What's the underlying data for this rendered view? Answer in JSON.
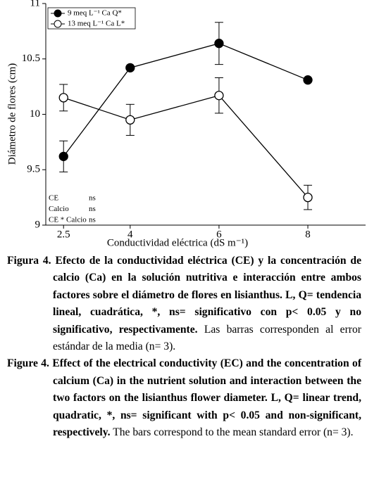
{
  "chart_data": {
    "type": "line",
    "y_label": "Diámetro de flores (cm)",
    "x_label": "Conductividad eléctrica (dS m⁻¹)",
    "x": [
      2.5,
      4,
      6,
      8
    ],
    "xlim": [
      2.1,
      9.3
    ],
    "xticks": [
      2.5,
      4,
      6,
      8
    ],
    "ylim": [
      9,
      11
    ],
    "yticks": [
      9,
      9.5,
      10,
      10.5,
      11
    ],
    "legend": "top-left",
    "series": [
      {
        "name": "9 meq L⁻¹ Ca Q*",
        "color": "#000000",
        "marker": "filled",
        "values": [
          9.62,
          10.42,
          10.64,
          10.31
        ],
        "errors": [
          0.14,
          null,
          0.19,
          null
        ]
      },
      {
        "name": "13 meq L⁻¹ Ca L*",
        "color": "#000000",
        "marker": "open",
        "values": [
          10.15,
          9.95,
          10.17,
          9.25
        ],
        "errors": [
          0.12,
          0.14,
          0.16,
          0.11
        ]
      }
    ],
    "annotations": [
      [
        "CE",
        "ns"
      ],
      [
        "Calcio",
        "ns"
      ],
      [
        "CE * Calcio",
        "ns"
      ]
    ]
  },
  "captions": [
    {
      "label": "Figura 4.",
      "bold": "Efecto de la conductividad eléctrica (CE) y la concentración de calcio (Ca) en la solución nutritiva e interacción entre ambos factores sobre el diámetro de flores en lisianthus. L, Q= tendencia lineal, cuadrática, *, ns= significativo con p< 0.05 y no significativo, respectivamente.",
      "normal": "Las barras corresponden al error estándar de la media (n= 3)."
    },
    {
      "label": "Figure 4.",
      "bold": "Effect of the electrical conductivity (EC) and the concentration of calcium (Ca) in the nutrient solution and interaction between the two factors on the lisianthus flower diameter. L, Q= linear trend, quadratic, *, ns= significant with p< 0.05 and non-significant, respectively.",
      "normal": "The bars correspond to the mean standard error (n= 3)."
    }
  ]
}
